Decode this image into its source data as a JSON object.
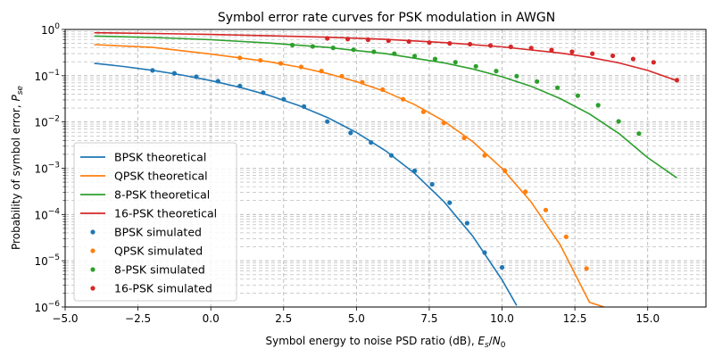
{
  "chart_data": {
    "type": "line",
    "title": "Symbol error rate curves for PSK modulation in AWGN",
    "xlabel": "Symbol energy to noise PSD ratio (dB), ",
    "xlabel_math": "E",
    "xlabel_math_sub": "s",
    "xlabel_sep": "/",
    "xlabel_math2": "N",
    "xlabel_math2_sub": "0",
    "ylabel": "Probability of symbol error, ",
    "ylabel_math": "P",
    "ylabel_math_sub": "se",
    "xlim": [
      -5,
      17
    ],
    "ylim_log10": [
      -6,
      0
    ],
    "x_ticks": [
      -5,
      -2.5,
      0,
      2.5,
      5,
      7.5,
      10,
      12.5,
      15
    ],
    "x_tick_labels": [
      "−5.0",
      "−2.5",
      "0.0",
      "2.5",
      "5.0",
      "7.5",
      "10.0",
      "12.5",
      "15.0"
    ],
    "y_ticks_exp": [
      -6,
      -5,
      -4,
      -3,
      -2,
      -1,
      0
    ],
    "y_tick_base": "10",
    "y_tick_exps": [
      "−6",
      "−5",
      "−4",
      "−3",
      "−2",
      "−1",
      "0"
    ],
    "grid": true,
    "legend_position": "lower-left",
    "colors": {
      "bpsk": "#1f77b4",
      "qpsk": "#ff7f0e",
      "psk8": "#2ca02c",
      "psk16": "#d62728",
      "grid": "#b0b0b0"
    },
    "series": [
      {
        "name": "BPSK theoretical",
        "kind": "line",
        "color_key": "bpsk",
        "x": [
          -4,
          -3,
          -2,
          -1,
          0,
          1,
          2,
          3,
          4,
          5,
          6,
          7,
          8,
          9,
          10,
          10.5
        ],
        "y": [
          0.186,
          0.158,
          0.131,
          0.104,
          0.0786,
          0.0563,
          0.0375,
          0.0229,
          0.0125,
          0.00595,
          0.00239,
          0.000773,
          0.000191,
          3.36e-05,
          3.87e-06,
          1.08e-06
        ]
      },
      {
        "name": "QPSK theoretical",
        "kind": "line",
        "color_key": "qpsk",
        "x": [
          -4,
          -2,
          0,
          1,
          2,
          3,
          4,
          5,
          6,
          7,
          8,
          9,
          10,
          11,
          12,
          13,
          13.5
        ],
        "y": [
          0.47,
          0.41,
          0.293,
          0.243,
          0.2,
          0.155,
          0.112,
          0.0745,
          0.045,
          0.0237,
          0.0105,
          0.00372,
          0.000991,
          0.000186,
          2.19e-05,
          1.26e-06,
          1e-06
        ]
      },
      {
        "name": "8-PSK theoretical",
        "kind": "line",
        "color_key": "psk8",
        "x": [
          -4,
          -2,
          0,
          2,
          4,
          6,
          8,
          9,
          10,
          11,
          12,
          13,
          14,
          15,
          16
        ],
        "y": [
          0.72,
          0.67,
          0.6,
          0.51,
          0.41,
          0.3,
          0.19,
          0.14,
          0.095,
          0.059,
          0.032,
          0.0149,
          0.0057,
          0.0017,
          0.00062
        ]
      },
      {
        "name": "16-PSK theoretical",
        "kind": "line",
        "color_key": "psk16",
        "x": [
          -4,
          -2,
          0,
          2,
          4,
          6,
          8,
          10,
          12,
          13,
          14,
          15,
          16
        ],
        "y": [
          0.85,
          0.82,
          0.78,
          0.73,
          0.68,
          0.61,
          0.52,
          0.42,
          0.31,
          0.25,
          0.19,
          0.13,
          0.078
        ]
      },
      {
        "name": "BPSK simulated",
        "kind": "scatter",
        "color_key": "bpsk",
        "x": [
          -2,
          -1.25,
          -0.5,
          0.25,
          1,
          1.8,
          2.5,
          3.2,
          4,
          4.8,
          5.5,
          6.2,
          7,
          7.6,
          8.2,
          8.8,
          9.4,
          10
        ],
        "y": [
          0.13,
          0.113,
          0.095,
          0.076,
          0.06,
          0.043,
          0.031,
          0.0215,
          0.0102,
          0.0058,
          0.0036,
          0.0019,
          0.00088,
          0.00045,
          0.00018,
          6.5e-05,
          1.5e-05,
          7.2e-06
        ]
      },
      {
        "name": "QPSK simulated",
        "kind": "scatter",
        "color_key": "qpsk",
        "x": [
          1,
          1.7,
          2.4,
          3.1,
          3.8,
          4.5,
          5.2,
          5.9,
          6.6,
          7.3,
          8,
          8.7,
          9.4,
          10.1,
          10.8,
          11.5,
          12.2,
          12.9
        ],
        "y": [
          0.244,
          0.215,
          0.185,
          0.155,
          0.126,
          0.098,
          0.072,
          0.05,
          0.031,
          0.0166,
          0.0095,
          0.0045,
          0.0019,
          0.00088,
          0.00031,
          0.000125,
          3.3e-05,
          6.8e-06
        ]
      },
      {
        "name": "8-PSK simulated",
        "kind": "scatter",
        "color_key": "psk8",
        "x": [
          2.8,
          3.5,
          4.2,
          4.9,
          5.6,
          6.3,
          7,
          7.7,
          8.4,
          9.1,
          9.8,
          10.5,
          11.2,
          11.9,
          12.6,
          13.3,
          14,
          14.7
        ],
        "y": [
          0.46,
          0.43,
          0.4,
          0.365,
          0.33,
          0.3,
          0.265,
          0.23,
          0.196,
          0.16,
          0.126,
          0.098,
          0.075,
          0.055,
          0.037,
          0.023,
          0.0103,
          0.0056
        ]
      },
      {
        "name": "16-PSK simulated",
        "kind": "scatter",
        "color_key": "psk16",
        "x": [
          4,
          4.7,
          5.4,
          6.1,
          6.8,
          7.5,
          8.2,
          8.9,
          9.6,
          10.3,
          11,
          11.7,
          12.4,
          13.1,
          13.8,
          14.5,
          15.2,
          16
        ],
        "y": [
          0.64,
          0.62,
          0.6,
          0.57,
          0.55,
          0.52,
          0.5,
          0.48,
          0.45,
          0.42,
          0.395,
          0.36,
          0.33,
          0.3,
          0.27,
          0.23,
          0.195,
          0.08
        ]
      }
    ]
  }
}
